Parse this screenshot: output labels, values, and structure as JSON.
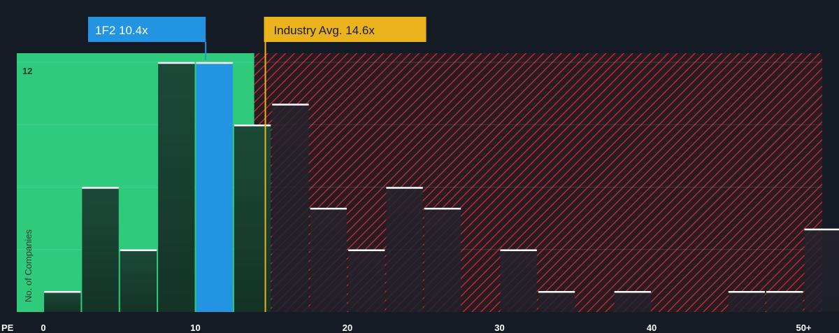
{
  "chart_data": {
    "type": "bar",
    "x_axis_prefix": "PE",
    "x_ticks": [
      "0",
      "10",
      "20",
      "30",
      "40",
      "50+"
    ],
    "x_tick_values": [
      0,
      10,
      20,
      30,
      40,
      50
    ],
    "ylabel": "No. of Companies",
    "y_ticks": [
      "12"
    ],
    "ylim": [
      0,
      12
    ],
    "bin_width": 2.5,
    "bins": [
      {
        "start": 0,
        "value": 1
      },
      {
        "start": 2.5,
        "value": 6
      },
      {
        "start": 5,
        "value": 3
      },
      {
        "start": 7.5,
        "value": 12
      },
      {
        "start": 10,
        "value": 12,
        "highlight": true
      },
      {
        "start": 12.5,
        "value": 9
      },
      {
        "start": 15,
        "value": 10
      },
      {
        "start": 17.5,
        "value": 5
      },
      {
        "start": 20,
        "value": 3
      },
      {
        "start": 22.5,
        "value": 6
      },
      {
        "start": 25,
        "value": 5
      },
      {
        "start": 27.5,
        "value": 0
      },
      {
        "start": 30,
        "value": 3
      },
      {
        "start": 32.5,
        "value": 1
      },
      {
        "start": 35,
        "value": 0
      },
      {
        "start": 37.5,
        "value": 1
      },
      {
        "start": 40,
        "value": 0
      },
      {
        "start": 42.5,
        "value": 0
      },
      {
        "start": 45,
        "value": 1
      },
      {
        "start": 47.5,
        "value": 1
      },
      {
        "start": 50,
        "value": 4
      }
    ],
    "company": {
      "label": "1F2 10.4x",
      "value": 10.4
    },
    "industry_avg": {
      "label": "Industry Avg. 14.6x",
      "value": 14.6
    },
    "colors": {
      "background": "#151b24",
      "undervalued_zone": "#2fca7c",
      "bar_dark": "#1e4a38",
      "highlight_bar": "#2394e1",
      "overvalued_hatch": "#c0333b",
      "company_callout": "#2394e1",
      "industry_callout": "#eab21b"
    }
  }
}
